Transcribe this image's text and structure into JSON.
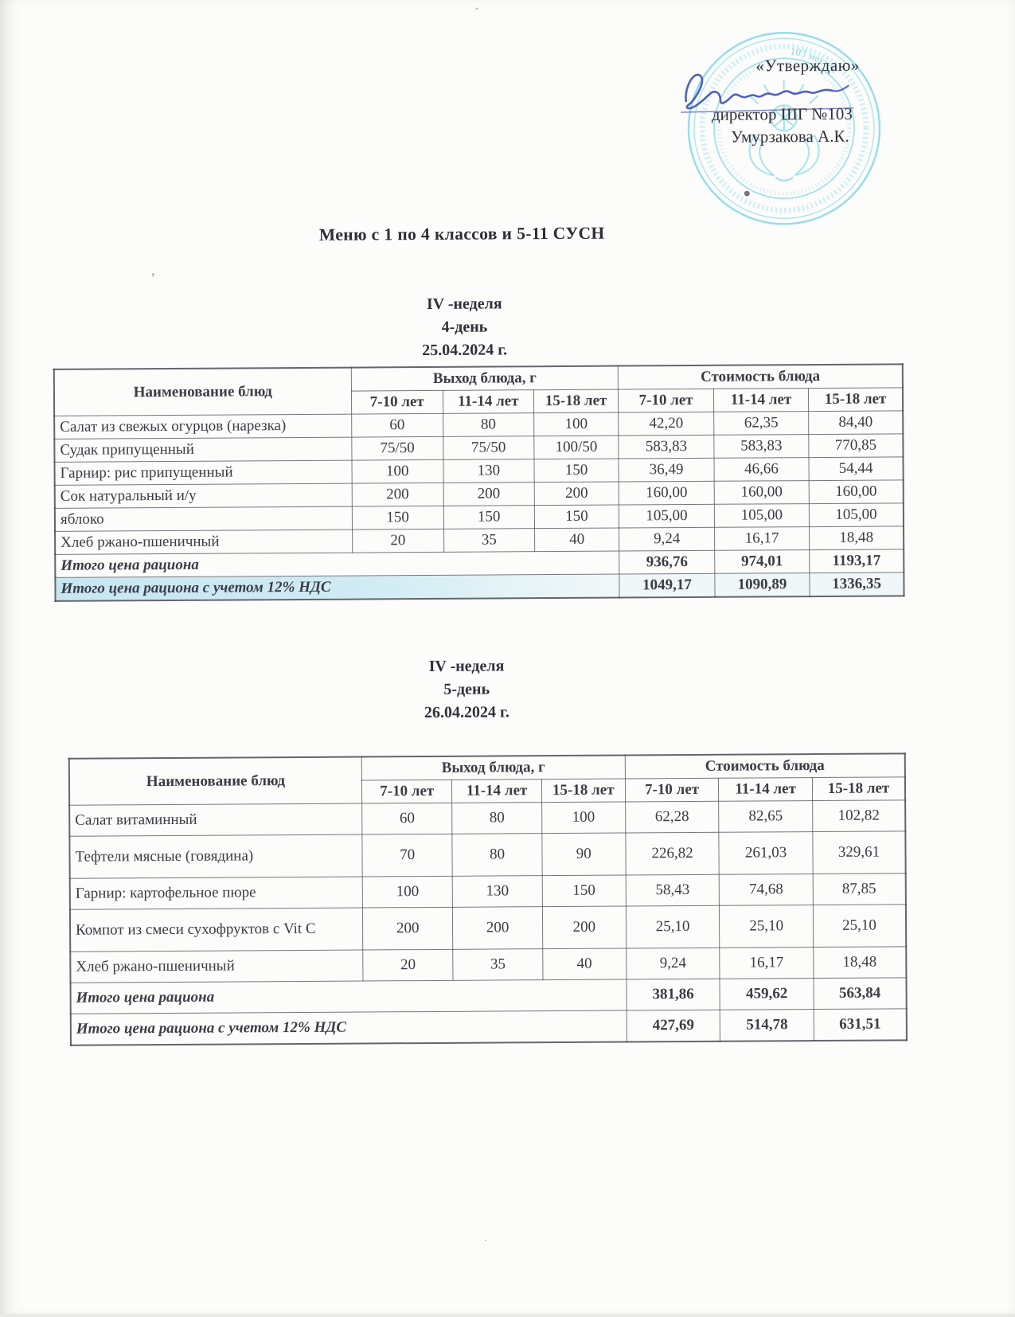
{
  "page": {
    "title": "Меню с 1 по 4 классов и 5-11 СУСН"
  },
  "approval": {
    "approve_label": "«Утверждаю»",
    "director_line": "директор ШГ №103",
    "director_name": "Умурзакова А.К.",
    "stamp_ring_fragment": "103 мектеп",
    "stamp_color": "#64cfe4",
    "signature_color": "#4050b4"
  },
  "sections": [
    {
      "week": "IV -неделя",
      "day": "4-день",
      "date": "25.04.2024 г."
    },
    {
      "week": "IV -неделя",
      "day": "5-день",
      "date": "26.04.2024 г."
    }
  ],
  "table_headers": {
    "name": "Наименование блюд",
    "output": "Выход блюда, г",
    "cost": "Стоимость блюда",
    "age_groups": [
      "7-10 лет",
      "11-14 лет",
      "15-18 лет"
    ]
  },
  "tables": [
    {
      "rows": [
        {
          "name": "Салат из свежых огурцов (нарезка)",
          "weights": [
            "60",
            "80",
            "100"
          ],
          "costs": [
            "42,20",
            "62,35",
            "84,40"
          ]
        },
        {
          "name": "Судак припущенный",
          "weights": [
            "75/50",
            "75/50",
            "100/50"
          ],
          "costs": [
            "583,83",
            "583,83",
            "770,85"
          ]
        },
        {
          "name": "Гарнир: рис припущенный",
          "weights": [
            "100",
            "130",
            "150"
          ],
          "costs": [
            "36,49",
            "46,66",
            "54,44"
          ]
        },
        {
          "name": "Сок натуральный и/у",
          "weights": [
            "200",
            "200",
            "200"
          ],
          "costs": [
            "160,00",
            "160,00",
            "160,00"
          ]
        },
        {
          "name": "яблоко",
          "weights": [
            "150",
            "150",
            "150"
          ],
          "costs": [
            "105,00",
            "105,00",
            "105,00"
          ]
        },
        {
          "name": "Хлеб ржано-пшеничный",
          "weights": [
            "20",
            "35",
            "40"
          ],
          "costs": [
            "9,24",
            "16,17",
            "18,48"
          ]
        }
      ],
      "totals": [
        {
          "label": "Итого цена рациона",
          "values": [
            "936,76",
            "974,01",
            "1193,17"
          ],
          "highlight": false
        },
        {
          "label": "Итого цена рациона с учетом 12% НДС",
          "values": [
            "1049,17",
            "1090,89",
            "1336,35"
          ],
          "highlight": true
        }
      ]
    },
    {
      "rows": [
        {
          "name": "Салат витаминный",
          "weights": [
            "60",
            "80",
            "100"
          ],
          "costs": [
            "62,28",
            "82,65",
            "102,82"
          ]
        },
        {
          "name": "Тефтели мясные (говядина)",
          "weights": [
            "70",
            "80",
            "90"
          ],
          "costs": [
            "226,82",
            "261,03",
            "329,61"
          ]
        },
        {
          "name": "Гарнир: картофельное пюре",
          "weights": [
            "100",
            "130",
            "150"
          ],
          "costs": [
            "58,43",
            "74,68",
            "87,85"
          ]
        },
        {
          "name": "Компот из смеси сухофруктов с Vit С",
          "weights": [
            "200",
            "200",
            "200"
          ],
          "costs": [
            "25,10",
            "25,10",
            "25,10"
          ]
        },
        {
          "name": "Хлеб ржано-пшеничный",
          "weights": [
            "20",
            "35",
            "40"
          ],
          "costs": [
            "9,24",
            "16,17",
            "18,48"
          ]
        }
      ],
      "totals": [
        {
          "label": "Итого цена рациона",
          "values": [
            "381,86",
            "459,62",
            "563,84"
          ],
          "highlight": false
        },
        {
          "label": "Итого цена рациона с учетом 12% НДС",
          "values": [
            "427,69",
            "514,78",
            "631,51"
          ],
          "highlight": false
        }
      ]
    }
  ]
}
